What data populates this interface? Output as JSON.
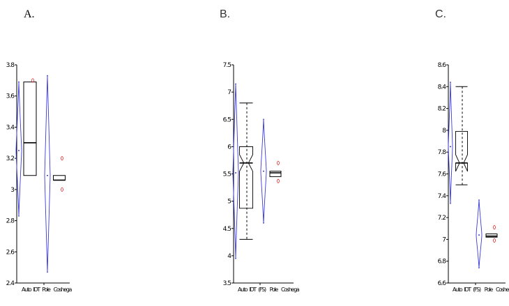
{
  "chart_data": [
    {
      "type": "box",
      "panel_label": "A.",
      "ylim": [
        2.4,
        3.8
      ],
      "yticks": [
        2.4,
        2.6,
        2.8,
        3,
        3.2,
        3.4,
        3.6,
        3.8
      ],
      "ytick_labels": [
        "2.4",
        "2.6",
        "2.8",
        "3",
        "3.2",
        "3.4",
        "3.6",
        "3.8"
      ],
      "categories": [
        "Auto",
        "IDT",
        "Pole",
        "Coshega"
      ],
      "violins": [
        {
          "name": "violin-1",
          "min": 2.83,
          "max": 3.69,
          "mid": 3.25
        },
        {
          "name": "violin-2",
          "min": 2.47,
          "max": 3.73,
          "mid": 3.09
        }
      ],
      "boxes": [
        {
          "name": "box-1",
          "whisker_low": 3.09,
          "q1": 3.09,
          "median": 3.3,
          "q3": 3.69,
          "whisker_high": 3.69,
          "outliers": [
            3.7
          ]
        },
        {
          "name": "box-2",
          "whisker_low": 3.06,
          "q1": 3.06,
          "median": 3.06,
          "q3": 3.09,
          "whisker_high": 3.09,
          "outliers": [
            3.2,
            3.0
          ]
        }
      ]
    },
    {
      "type": "box",
      "panel_label": "B.",
      "ylim": [
        3.5,
        7.5
      ],
      "yticks": [
        3.5,
        4,
        4.5,
        5,
        5.5,
        6,
        6.5,
        7,
        7.5
      ],
      "ytick_labels": [
        "3.5",
        "4",
        "4.5",
        "5",
        "5.5",
        "6",
        "6.5",
        "7",
        "7.5"
      ],
      "categories": [
        "Auto",
        "IDT",
        "(FS)",
        "Pole",
        "Coshega"
      ],
      "violins": [
        {
          "name": "violin-1",
          "min": 3.95,
          "max": 7.15,
          "mid": 5.52
        },
        {
          "name": "violin-2",
          "min": 4.6,
          "max": 6.5,
          "mid": 5.55
        }
      ],
      "boxes": [
        {
          "name": "box-1",
          "whisker_low": 4.3,
          "q1": 4.87,
          "median": 5.7,
          "q3": 6.0,
          "whisker_high": 6.8,
          "outliers": []
        },
        {
          "name": "box-2",
          "whisker_low": 5.45,
          "q1": 5.45,
          "median": 5.52,
          "q3": 5.55,
          "whisker_high": 5.55,
          "outliers": [
            5.7,
            5.37
          ]
        }
      ]
    },
    {
      "type": "box",
      "panel_label": "C.",
      "ylim": [
        6.6,
        8.6
      ],
      "yticks": [
        6.6,
        6.8,
        7,
        7.2,
        7.4,
        7.6,
        7.8,
        8,
        8.2,
        8.4,
        8.6
      ],
      "ytick_labels": [
        "6.6",
        "6.8",
        "7",
        "7.2",
        "7.4",
        "7.6",
        "7.8",
        "8",
        "8.2",
        "8.4",
        "8.6"
      ],
      "categories": [
        "Auto",
        "IDT",
        "(FS)",
        "Pole",
        "Coshega"
      ],
      "violins": [
        {
          "name": "violin-1",
          "min": 7.33,
          "max": 8.44,
          "mid": 7.85
        },
        {
          "name": "violin-2",
          "min": 6.74,
          "max": 7.36,
          "mid": 7.04
        }
      ],
      "boxes": [
        {
          "name": "box-1",
          "whisker_low": 7.5,
          "q1": 7.7,
          "median": 7.7,
          "q3": 7.99,
          "whisker_high": 8.4,
          "outliers": []
        },
        {
          "name": "box-2",
          "whisker_low": 7.02,
          "q1": 7.02,
          "median": 7.03,
          "q3": 7.05,
          "whisker_high": 7.05,
          "outliers": [
            7.11,
            6.99
          ]
        }
      ]
    }
  ]
}
